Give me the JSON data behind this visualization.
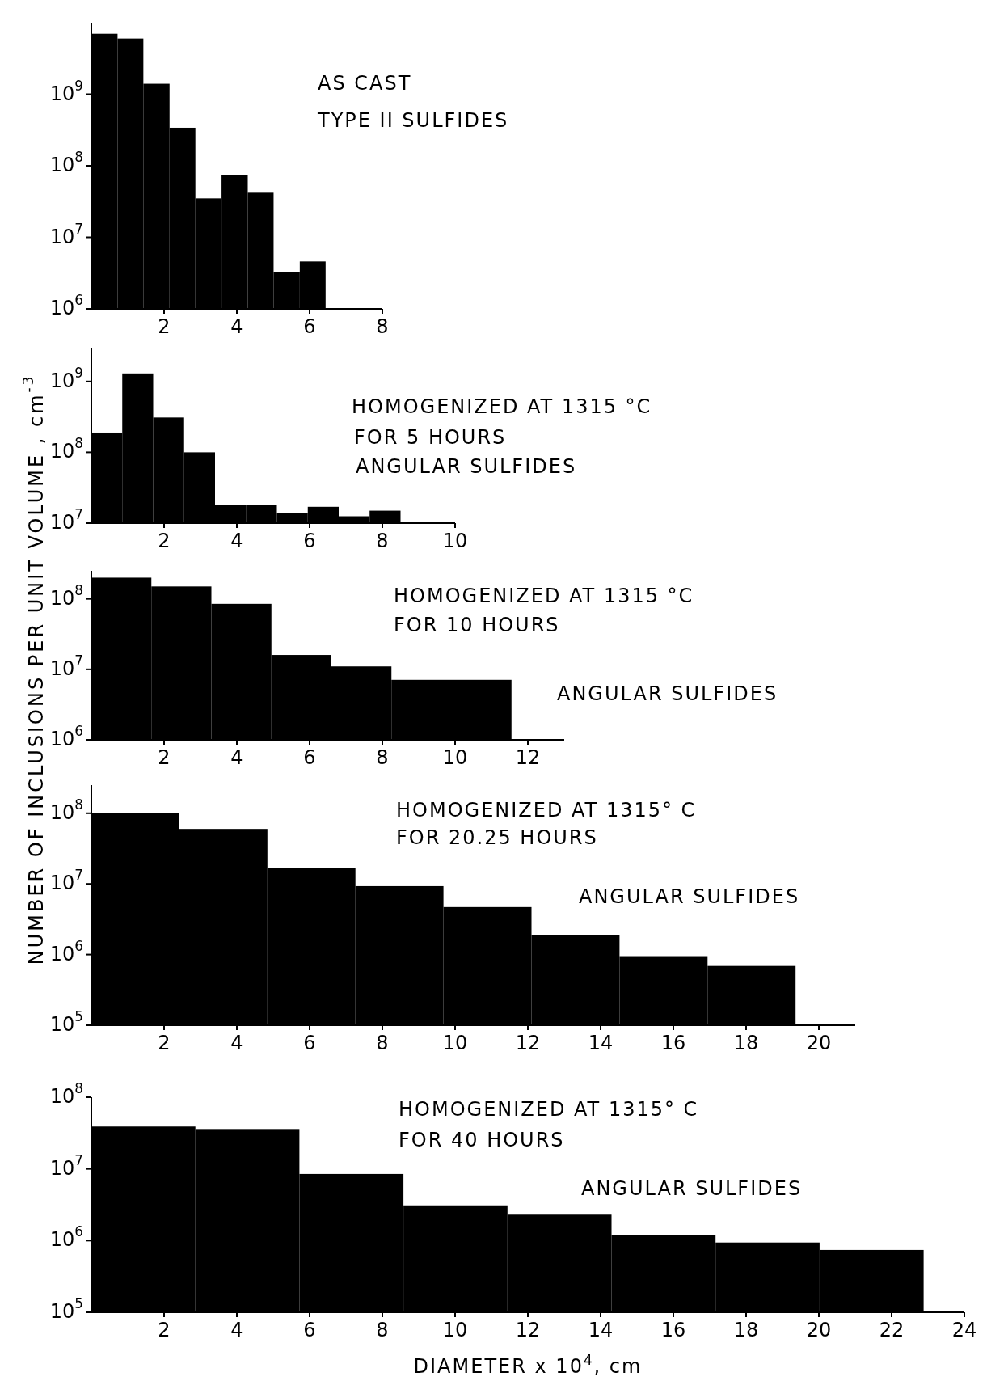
{
  "chart_data": [
    {
      "type": "histogram",
      "bins": [
        0,
        0.72,
        1.43,
        2.15,
        2.86,
        3.58,
        4.3,
        5.01,
        5.73,
        6.44
      ],
      "values": [
        7000000000.0,
        6000000000.0,
        1400000000.0,
        340000000.0,
        35000000.0,
        75000000.0,
        42000000.0,
        3300000.0,
        4600000.0
      ],
      "color": "#000000",
      "log": true,
      "xlim": [
        0,
        8
      ],
      "xticks": [
        2,
        4,
        6,
        8
      ],
      "ylim": [
        1000000.0,
        10000000000.0
      ],
      "yticks": [
        {
          "value": 1000000.0,
          "label": "10$^{6}$"
        },
        {
          "value": 10000000.0,
          "label": "10$^{7}$"
        },
        {
          "value": 100000000.0,
          "label": "10$^{8}$"
        },
        {
          "value": 1000000000.0,
          "label": "10$^{9}$"
        }
      ],
      "ylabel": "NUMBER OF INCLUSIONS PER UNIT VOLUME , cm$^{-3}$",
      "annotations": [
        "AS CAST",
        "TYPE II SULFIDES"
      ]
    },
    {
      "type": "histogram",
      "bins": [
        0,
        0.85,
        1.7,
        2.55,
        3.4,
        4.25,
        5.1,
        5.95,
        6.8,
        7.65,
        8.5
      ],
      "values": [
        190000000.0,
        1300000000.0,
        310000000.0,
        100000000.0,
        18000000.0,
        18000000.0,
        14000000.0,
        17000000.0,
        12500000.0,
        15000000.0
      ],
      "color": "#000000",
      "log": true,
      "xlim": [
        0,
        10
      ],
      "xticks": [
        2,
        4,
        6,
        8,
        10
      ],
      "ylim": [
        10000000.0,
        3000000000.0
      ],
      "yticks": [
        {
          "value": 10000000.0,
          "label": "10$^{7}$"
        },
        {
          "value": 100000000.0,
          "label": "10$^{8}$"
        },
        {
          "value": 1000000000.0,
          "label": "10$^{9}$"
        }
      ],
      "annotations": [
        "HOMOGENIZED AT 1315 °C",
        "FOR 5 HOURS",
        "ANGULAR SULFIDES"
      ]
    },
    {
      "type": "histogram",
      "bins": [
        0,
        1.65,
        3.3,
        4.95,
        6.6,
        8.25,
        11.55
      ],
      "values": [
        200000000.0,
        150000000.0,
        85000000.0,
        16000000.0,
        11000000.0,
        7100000.0
      ],
      "color": "#000000",
      "log": true,
      "xlim": [
        0,
        13
      ],
      "xticks": [
        2,
        4,
        6,
        8,
        10,
        12
      ],
      "ylim": [
        1000000.0,
        250000000.0
      ],
      "yticks": [
        {
          "value": 1000000.0,
          "label": "10$^{6}$"
        },
        {
          "value": 10000000.0,
          "label": "10$^{7}$"
        },
        {
          "value": 100000000.0,
          "label": "10$^{8}$"
        }
      ],
      "annotations": [
        "HOMOGENIZED AT 1315 °C",
        "FOR 10 HOURS",
        "ANGULAR SULFIDES"
      ]
    },
    {
      "type": "histogram",
      "bins": [
        0,
        2.42,
        4.84,
        7.26,
        9.68,
        12.1,
        14.52,
        16.94,
        19.36
      ],
      "values": [
        100000000.0,
        60000000.0,
        17000000.0,
        9300000.0,
        4700000.0,
        1900000.0,
        950000.0,
        690000.0
      ],
      "color": "#000000",
      "log": true,
      "xlim": [
        0,
        21
      ],
      "xticks": [
        2,
        4,
        6,
        8,
        10,
        12,
        14,
        16,
        18,
        20
      ],
      "ylim": [
        100000.0,
        250000000.0
      ],
      "yticks": [
        {
          "value": 100000.0,
          "label": "10$^{5}$"
        },
        {
          "value": 1000000.0,
          "label": "10$^{6}$"
        },
        {
          "value": 10000000.0,
          "label": "10$^{7}$"
        },
        {
          "value": 100000000.0,
          "label": "10$^{8}$"
        }
      ],
      "annotations": [
        "HOMOGENIZED AT 1315° C",
        "FOR 20.25 HOURS",
        "ANGULAR SULFIDES"
      ]
    },
    {
      "type": "histogram",
      "bins": [
        0,
        2.86,
        5.72,
        8.58,
        11.44,
        14.3,
        17.16,
        20.02,
        22.88
      ],
      "values": [
        39000000.0,
        36000000.0,
        8500000.0,
        3100000.0,
        2300000.0,
        1200000.0,
        940000.0,
        740000.0
      ],
      "color": "#000000",
      "log": true,
      "xlim": [
        0,
        24
      ],
      "xticks": [
        2,
        4,
        6,
        8,
        10,
        12,
        14,
        16,
        18,
        20,
        22,
        24
      ],
      "ylim": [
        100000.0,
        100000000.0
      ],
      "yticks": [
        {
          "value": 100000.0,
          "label": "10$^{5}$"
        },
        {
          "value": 1000000.0,
          "label": "10$^{6}$"
        },
        {
          "value": 10000000.0,
          "label": "10$^{7}$"
        },
        {
          "value": 100000000.0,
          "label": "10$^{8}$"
        }
      ],
      "xlabel": "DIAMETER x 10$^{4}$, cm",
      "annotations": [
        "HOMOGENIZED AT 1315° C",
        "FOR 40 HOURS",
        "ANGULAR SULFIDES"
      ]
    }
  ]
}
